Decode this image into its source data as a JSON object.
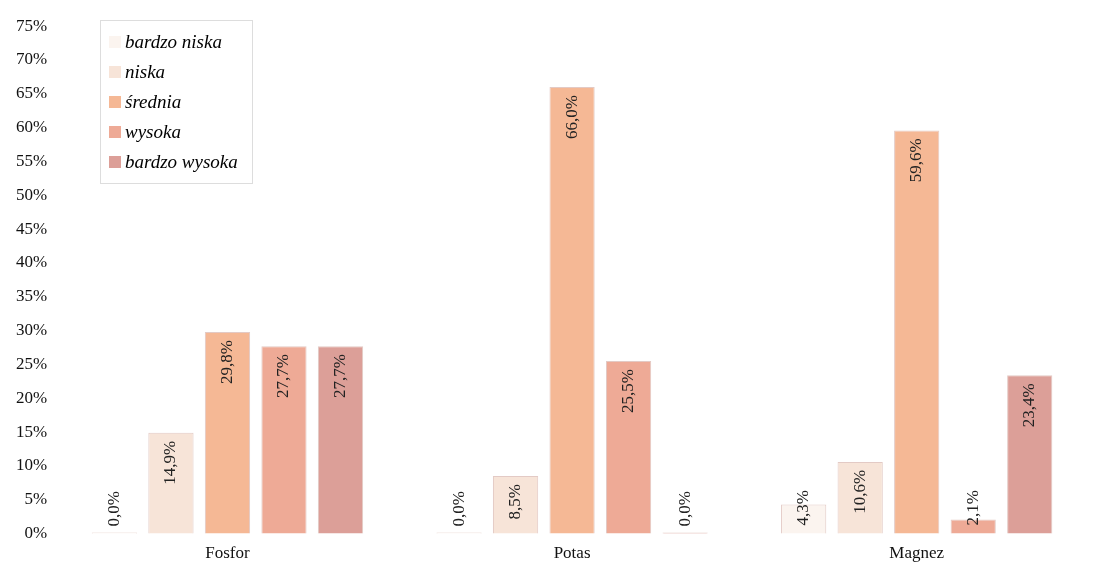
{
  "chart_data": {
    "type": "bar",
    "categories": [
      "Fosfor",
      "Potas",
      "Magnez"
    ],
    "series": [
      {
        "name": "bardzo niska",
        "color": "#fbf4ef",
        "values": [
          0,
          0,
          4.3
        ],
        "value_labels": [
          "0,0%",
          "0,0%",
          "4,3%"
        ]
      },
      {
        "name": "niska",
        "color": "#f7e4d8",
        "values": [
          14.9,
          8.5,
          10.6
        ],
        "value_labels": [
          "14,9%",
          "8,5%",
          "10,6%"
        ]
      },
      {
        "name": "średnia",
        "color": "#f5b895",
        "values": [
          29.8,
          66.0,
          59.6
        ],
        "value_labels": [
          "29,8%",
          "66,0%",
          "59,6%"
        ]
      },
      {
        "name": "wysoka",
        "color": "#eeaa96",
        "values": [
          27.7,
          25.5,
          2.1
        ],
        "value_labels": [
          "27,7%",
          "25,5%",
          "2,1%"
        ]
      },
      {
        "name": "bardzo wysoka",
        "color": "#dc9f98",
        "values": [
          27.7,
          0,
          23.4
        ],
        "value_labels": [
          "27,7%",
          "0,0%",
          "23,4%"
        ]
      }
    ],
    "ylim": [
      0,
      75
    ],
    "yticks": [
      {
        "value": 0,
        "label": "0%"
      },
      {
        "value": 5,
        "label": "5%"
      },
      {
        "value": 10,
        "label": "10%"
      },
      {
        "value": 15,
        "label": "15%"
      },
      {
        "value": 20,
        "label": "20%"
      },
      {
        "value": 25,
        "label": "25%"
      },
      {
        "value": 30,
        "label": "30%"
      },
      {
        "value": 35,
        "label": "35%"
      },
      {
        "value": 40,
        "label": "40%"
      },
      {
        "value": 45,
        "label": "45%"
      },
      {
        "value": 50,
        "label": "50%"
      },
      {
        "value": 55,
        "label": "55%"
      },
      {
        "value": 60,
        "label": "60%"
      },
      {
        "value": 65,
        "label": "65%"
      },
      {
        "value": 70,
        "label": "70%"
      },
      {
        "value": 75,
        "label": "75%"
      }
    ],
    "grid": false,
    "legend": "top left"
  }
}
